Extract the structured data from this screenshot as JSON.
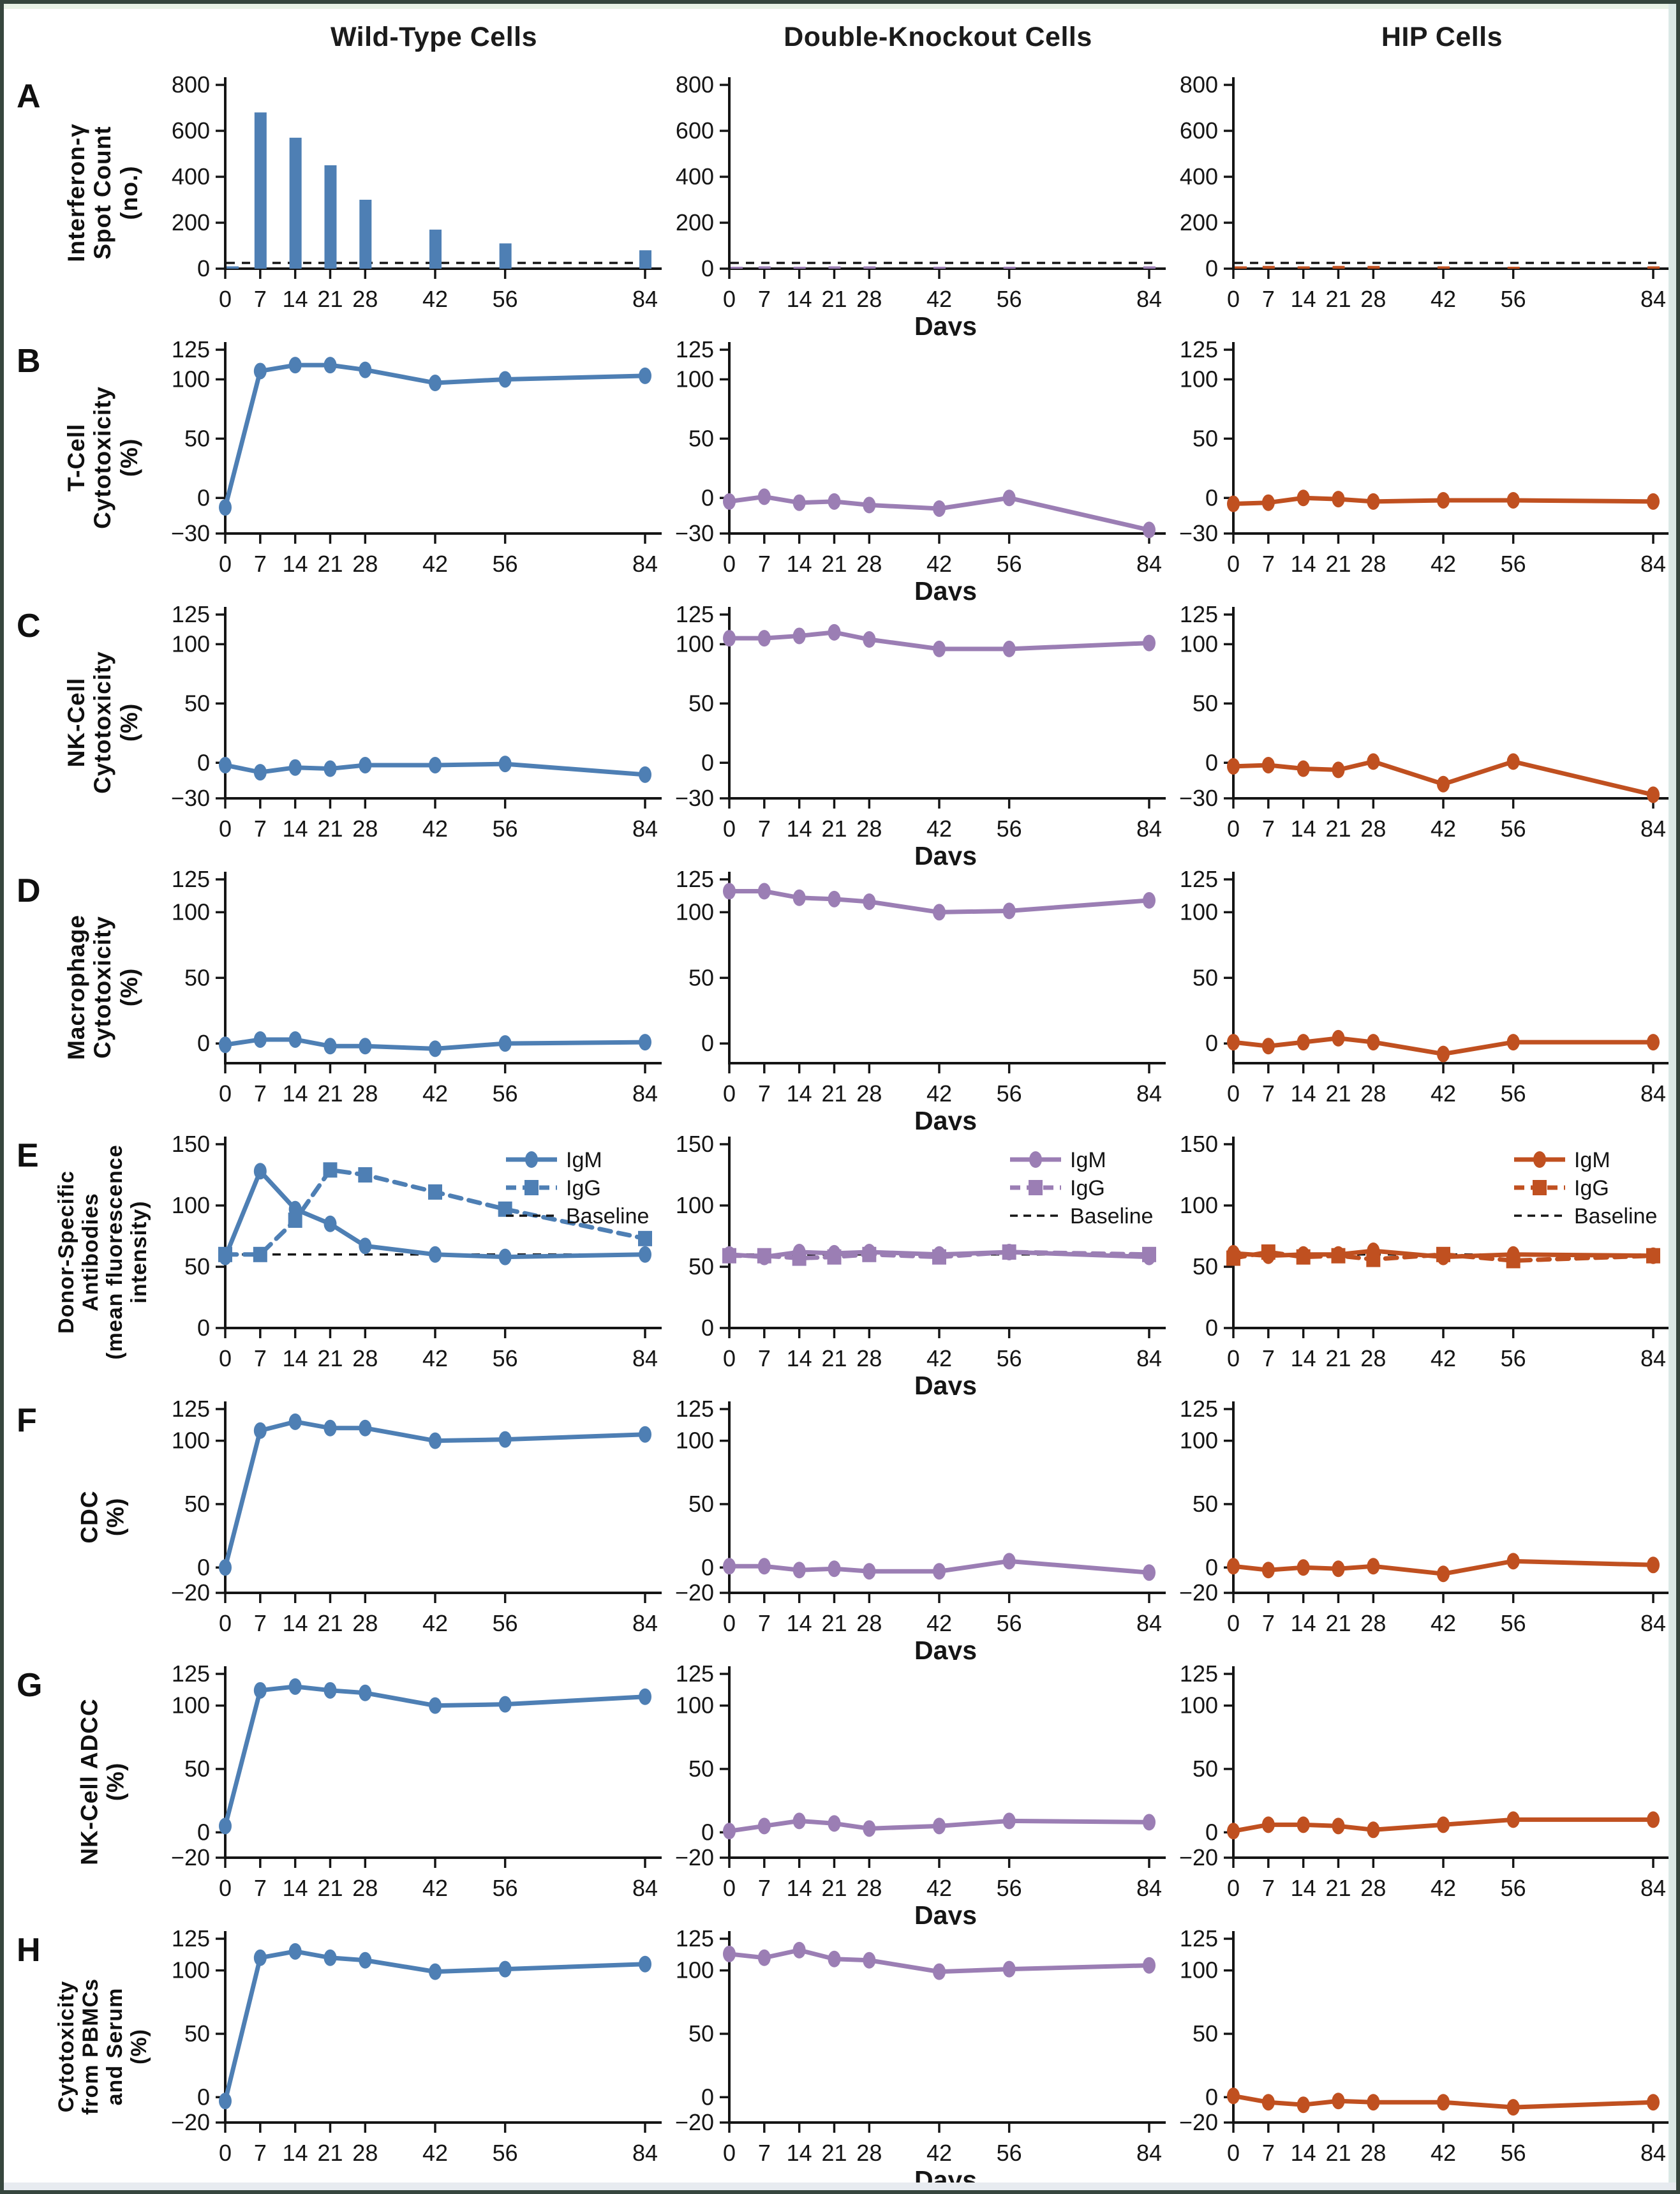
{
  "chart_data": {
    "type": "line",
    "description": "Multi-panel immunogenicity figure: 8 rows (A-H) x 3 columns of mini-charts over days after transplantation",
    "columns": [
      "Wild-Type Cells",
      "Double-Knockout Cells",
      "HIP Cells"
    ],
    "column_keys": [
      "wild-type",
      "double-knockout",
      "hip"
    ],
    "colors": {
      "columns": [
        "#4e7fb4",
        "#9b7eb4",
        "#c05020"
      ],
      "axis": "#151515",
      "baseline": "#151515"
    },
    "x": {
      "label": "Days",
      "ticks": [
        0,
        7,
        14,
        21,
        28,
        42,
        56,
        84
      ],
      "min": 0,
      "max": 84
    },
    "legend_position": "top-right",
    "grid": false,
    "rows": [
      {
        "letter": "A",
        "ylabel": "Interferon-γ\nSpot Count\n(no.)",
        "type": "bar",
        "ymin": 0,
        "ymax": 800,
        "yticks": [
          0,
          200,
          400,
          600,
          800
        ],
        "baseline": 25,
        "series": [
          [
            10,
            680,
            570,
            450,
            300,
            170,
            110,
            80
          ],
          [
            8,
            10,
            8,
            10,
            10,
            8,
            8,
            10
          ],
          [
            10,
            12,
            10,
            12,
            12,
            10,
            8,
            10
          ]
        ]
      },
      {
        "letter": "B",
        "ylabel": "T-Cell\nCytotoxicity\n(%)",
        "type": "line",
        "ymin": -30,
        "ymax": 125,
        "yticks": [
          -30,
          0,
          50,
          100,
          125
        ],
        "series": [
          [
            -8,
            107,
            112,
            112,
            108,
            97,
            100,
            103
          ],
          [
            -3,
            1,
            -4,
            -3,
            -6,
            -9,
            0,
            -27
          ],
          [
            -5,
            -4,
            0,
            -1,
            -3,
            -2,
            -2,
            -3
          ]
        ]
      },
      {
        "letter": "C",
        "ylabel": "NK-Cell\nCytotoxicity\n(%)",
        "type": "line",
        "ymin": -30,
        "ymax": 125,
        "yticks": [
          -30,
          0,
          50,
          100,
          125
        ],
        "series": [
          [
            -2,
            -8,
            -4,
            -5,
            -2,
            -2,
            -1,
            -10
          ],
          [
            105,
            105,
            107,
            110,
            104,
            96,
            96,
            101
          ],
          [
            -3,
            -2,
            -5,
            -6,
            1,
            -18,
            1,
            -27
          ]
        ]
      },
      {
        "letter": "D",
        "ylabel": "Macrophage\nCytotoxicity\n(%)",
        "type": "line",
        "ymin": -15,
        "ymax": 125,
        "yticks": [
          0,
          50,
          100,
          125
        ],
        "series": [
          [
            -1,
            3,
            3,
            -2,
            -2,
            -4,
            0,
            1
          ],
          [
            116,
            116,
            111,
            110,
            108,
            100,
            101,
            109
          ],
          [
            1,
            -2,
            1,
            4,
            1,
            -8,
            1,
            1
          ]
        ]
      },
      {
        "letter": "E",
        "ylabel": "Donor-Specific\nAntibodies\n(mean fluorescence\nintensity)",
        "type": "line2",
        "ymin": 0,
        "ymax": 150,
        "yticks": [
          0,
          50,
          100,
          150
        ],
        "baseline": 60,
        "legend": [
          "IgM",
          "IgG",
          "Baseline"
        ],
        "series_igm": [
          [
            58,
            128,
            97,
            85,
            67,
            60,
            58,
            60
          ],
          [
            60,
            58,
            62,
            61,
            62,
            60,
            62,
            58
          ],
          [
            61,
            59,
            60,
            60,
            63,
            58,
            60,
            59
          ]
        ],
        "series_igg": [
          [
            60,
            60,
            88,
            129,
            125,
            111,
            97,
            73
          ],
          [
            59,
            59,
            57,
            58,
            60,
            58,
            62,
            60
          ],
          [
            57,
            62,
            58,
            59,
            56,
            60,
            55,
            59
          ]
        ]
      },
      {
        "letter": "F",
        "ylabel": "CDC\n(%)",
        "type": "line",
        "ymin": -20,
        "ymax": 125,
        "yticks": [
          -20,
          0,
          50,
          100,
          125
        ],
        "series": [
          [
            0,
            108,
            115,
            110,
            110,
            100,
            101,
            105
          ],
          [
            1,
            1,
            -2,
            -1,
            -3,
            -3,
            5,
            -4
          ],
          [
            1,
            -2,
            0,
            -1,
            1,
            -5,
            5,
            2
          ]
        ]
      },
      {
        "letter": "G",
        "ylabel": "NK-Cell ADCC\n(%)",
        "type": "line",
        "ymin": -20,
        "ymax": 125,
        "yticks": [
          -20,
          0,
          50,
          100,
          125
        ],
        "series": [
          [
            5,
            112,
            115,
            112,
            110,
            100,
            101,
            107
          ],
          [
            1,
            5,
            9,
            7,
            3,
            5,
            9,
            8
          ],
          [
            1,
            6,
            6,
            5,
            2,
            6,
            10,
            10
          ]
        ]
      },
      {
        "letter": "H",
        "ylabel": "Cytotoxicity\nfrom PBMCs\nand Serum\n(%)",
        "type": "line",
        "ymin": -20,
        "ymax": 125,
        "yticks": [
          -20,
          0,
          50,
          100,
          125
        ],
        "series": [
          [
            -3,
            110,
            115,
            110,
            108,
            99,
            101,
            105
          ],
          [
            113,
            110,
            116,
            109,
            108,
            99,
            101,
            104
          ],
          [
            1,
            -4,
            -6,
            -3,
            -4,
            -4,
            -8,
            -4
          ]
        ]
      }
    ]
  }
}
